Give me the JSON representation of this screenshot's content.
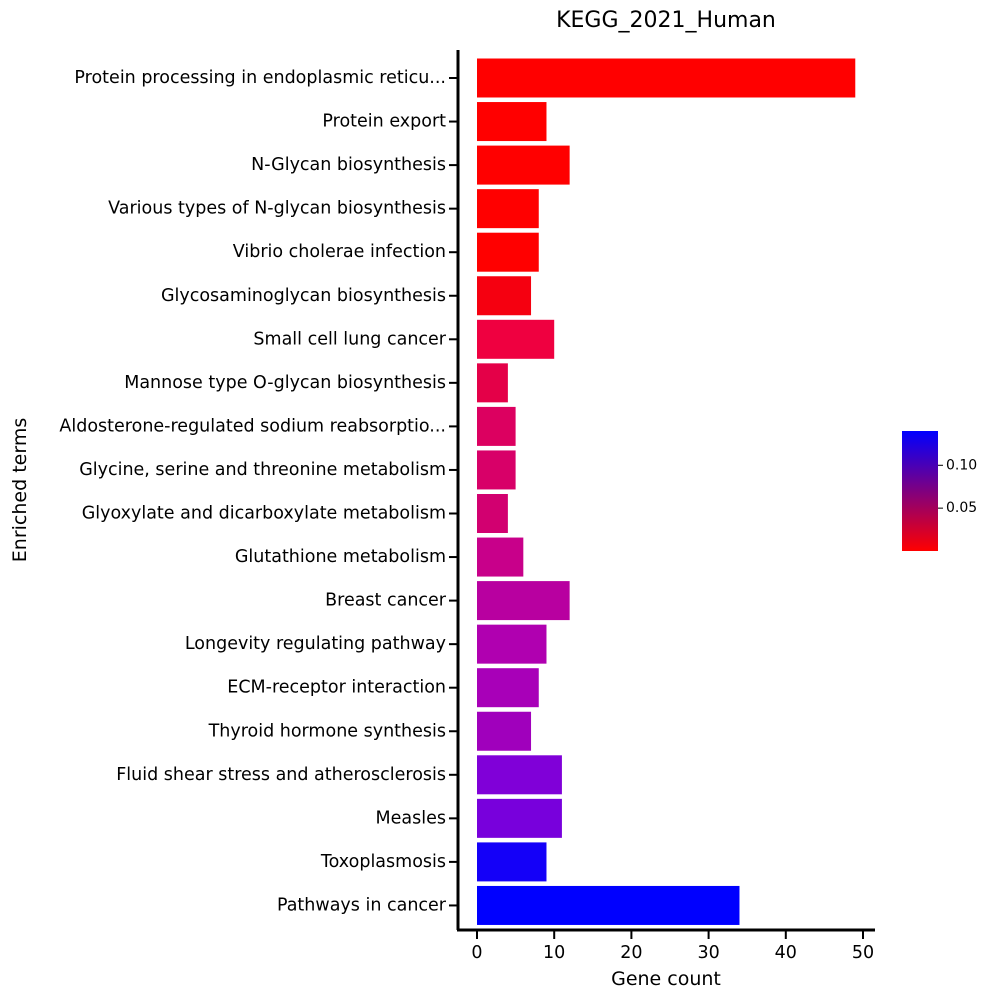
{
  "chart_data": {
    "type": "bar",
    "orientation": "horizontal",
    "title": "KEGG_2021_Human",
    "xlabel": "Gene count",
    "ylabel": "Enriched terms",
    "xlim": [
      0,
      50
    ],
    "xticks": [
      0,
      10,
      20,
      30,
      40,
      50
    ],
    "grid": false,
    "categories": [
      "Protein processing in endoplasmic reticu...",
      "Protein export",
      "N-Glycan biosynthesis",
      "Various types of N-glycan biosynthesis",
      "Vibrio cholerae infection",
      "Glycosaminoglycan biosynthesis",
      "Small cell lung cancer",
      "Mannose type O-glycan biosynthesis",
      "Aldosterone-regulated sodium reabsorptio...",
      "Glycine, serine and threonine metabolism",
      "Glyoxylate and dicarboxylate metabolism",
      "Glutathione metabolism",
      "Breast cancer",
      "Longevity regulating pathway",
      "ECM-receptor interaction",
      "Thyroid hormone synthesis",
      "Fluid shear stress and atherosclerosis",
      "Measles",
      "Toxoplasmosis",
      "Pathways in cancer"
    ],
    "values": [
      49,
      9,
      12,
      8,
      8,
      7,
      10,
      4,
      5,
      5,
      4,
      6,
      12,
      9,
      8,
      7,
      11,
      11,
      9,
      34
    ],
    "bar_colors": [
      "#ff0000",
      "#ff0000",
      "#ff0000",
      "#ff0000",
      "#ff0000",
      "#f50010",
      "#ef0040",
      "#e40048",
      "#dc0060",
      "#d80068",
      "#d20070",
      "#c8008a",
      "#b800a0",
      "#b000b0",
      "#a800b8",
      "#a000bc",
      "#8000d8",
      "#7800dc",
      "#1400f8",
      "#0000ff"
    ],
    "colorbar": {
      "min_color": "#ff0000",
      "max_color": "#0000ff",
      "ticks": [
        "0.10",
        "0.05"
      ],
      "tick_values": [
        0.1,
        0.05
      ],
      "range": [
        0.0,
        0.14
      ]
    }
  }
}
